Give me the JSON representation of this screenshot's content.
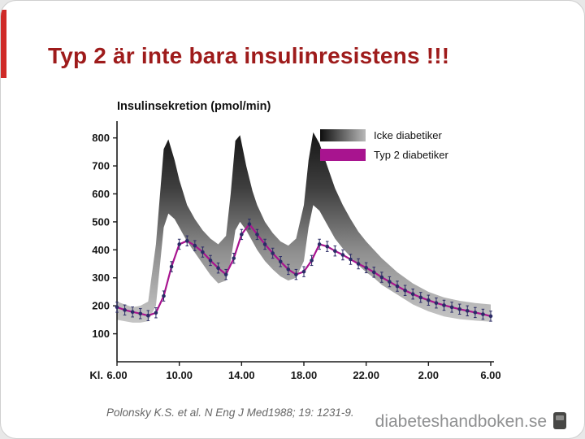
{
  "slide": {
    "title": "Typ 2 är inte bara insulinresistens !!!",
    "title_color": "#9e1b1b",
    "accent_bar_color": "#cf2a27",
    "citation": "Polonsky K.S. et al. N Eng J Med1988; 19: 1231-9.",
    "brand": "diabeteshandboken.se"
  },
  "chart_data": {
    "type": "area+line",
    "title": "Insulinsekretion (pmol/min)",
    "x_axis_prefix": "Kl.",
    "x_ticks": [
      "6.00",
      "10.00",
      "14.00",
      "18.00",
      "22.00",
      "2.00",
      "6.00"
    ],
    "x_tick_hours": [
      6,
      10,
      14,
      18,
      22,
      26,
      30
    ],
    "x_range": [
      6,
      30
    ],
    "y_ticks": [
      100,
      200,
      300,
      400,
      500,
      600,
      700,
      800
    ],
    "ylim": [
      0,
      860
    ],
    "grid": false,
    "legend_position": "top-right",
    "legend": [
      {
        "label": "Icke diabetiker",
        "style": "gradient-gray"
      },
      {
        "label": "Typ 2 diabetiker",
        "style": "solid-magenta"
      }
    ],
    "colors": {
      "band_top": "#0d0d0d",
      "band_bottom": "#d8d8d8",
      "line": "#a8148f",
      "marker": "#2b2b66",
      "axis": "#1a1a1a"
    },
    "error": 18,
    "band": {
      "x": [
        6,
        6.5,
        7,
        7.5,
        8,
        8.5,
        9,
        9.3,
        9.7,
        10,
        10.5,
        11,
        11.5,
        12,
        12.5,
        13,
        13.3,
        13.6,
        13.9,
        14.3,
        14.7,
        15,
        15.5,
        16,
        16.5,
        17,
        17.5,
        18,
        18.3,
        18.6,
        19,
        19.5,
        20,
        20.5,
        21,
        21.5,
        22,
        22.5,
        23,
        24,
        25,
        26,
        27,
        28,
        29,
        30
      ],
      "upper": [
        215,
        205,
        195,
        200,
        215,
        420,
        760,
        795,
        720,
        650,
        560,
        510,
        470,
        440,
        420,
        450,
        600,
        790,
        810,
        700,
        610,
        560,
        500,
        460,
        430,
        415,
        440,
        560,
        720,
        820,
        780,
        700,
        620,
        560,
        510,
        465,
        430,
        400,
        370,
        320,
        280,
        250,
        230,
        218,
        210,
        205
      ],
      "lower": [
        150,
        145,
        140,
        140,
        145,
        200,
        480,
        530,
        510,
        480,
        430,
        390,
        350,
        310,
        280,
        290,
        360,
        470,
        500,
        470,
        430,
        400,
        360,
        330,
        305,
        290,
        300,
        360,
        480,
        560,
        540,
        490,
        440,
        405,
        375,
        345,
        320,
        300,
        275,
        240,
        205,
        180,
        162,
        152,
        147,
        143
      ]
    },
    "typ2": {
      "x": [
        6,
        6.5,
        7,
        7.5,
        8,
        8.5,
        9,
        9.5,
        10,
        10.5,
        11,
        11.5,
        12,
        12.5,
        13,
        13.5,
        14,
        14.5,
        15,
        15.5,
        16,
        16.5,
        17,
        17.5,
        18,
        18.5,
        19,
        19.5,
        20,
        20.5,
        21,
        21.5,
        22,
        22.5,
        23,
        23.5,
        24,
        24.5,
        25,
        25.5,
        26,
        26.5,
        27,
        27.5,
        28,
        28.5,
        29,
        29.5,
        30
      ],
      "y": [
        195,
        185,
        178,
        172,
        165,
        175,
        235,
        340,
        420,
        432,
        415,
        392,
        362,
        335,
        312,
        370,
        455,
        492,
        455,
        420,
        388,
        358,
        330,
        312,
        322,
        362,
        420,
        412,
        396,
        382,
        366,
        350,
        336,
        320,
        302,
        286,
        270,
        255,
        242,
        230,
        220,
        210,
        202,
        195,
        188,
        182,
        176,
        170,
        163
      ]
    }
  }
}
